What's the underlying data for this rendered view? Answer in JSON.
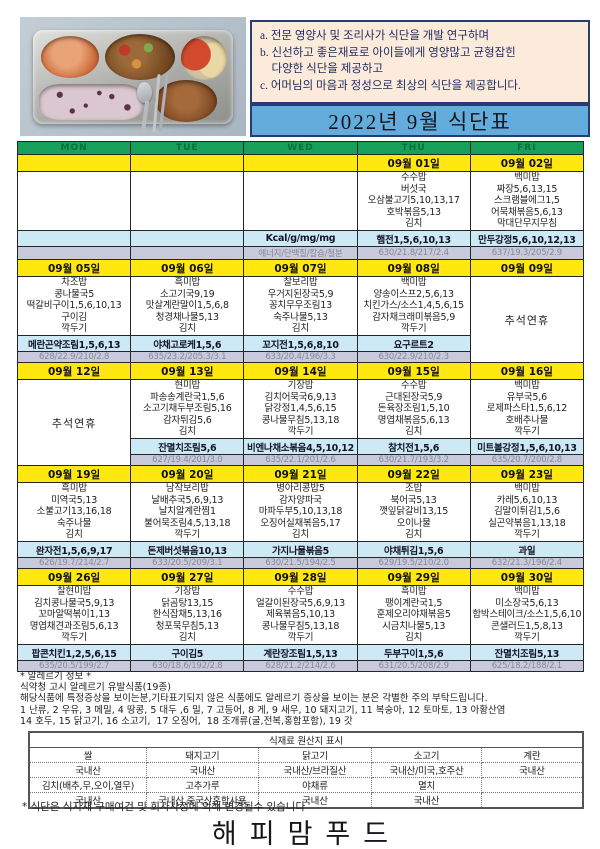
{
  "header": {
    "photo": "lunch-tray-photo",
    "notes": [
      "a. 전문 영양사 및 조리사가 식단을 개발 연구하며",
      "b. 신선하고 좋은재료로 아이들에게 영양많고 균형잡힌",
      "    다양한 식단을 제공하고",
      "c. 어머님의 마음과 정성으로 최상의 식단을 제공합니다."
    ],
    "title": "2022년  9월 식단표"
  },
  "colors": {
    "day_header_bg": "#16a05a",
    "day_header_text": "#0c6f3c",
    "date_bg": "#ffe70f",
    "snack_bg": "#cde9f5",
    "nutrition_bg": "#c9c9dc",
    "title_bg": "#64acdb",
    "note_bg": "#fcebdb",
    "border_navy": "#283c74"
  },
  "calendar": {
    "day_headers": [
      "MON",
      "TUE",
      "WED",
      "THU",
      "FRI"
    ],
    "weeks": [
      {
        "dates": [
          "",
          "",
          "",
          "09월 01일",
          "09월 02일"
        ],
        "days": [
          {
            "menu": [],
            "snack": "",
            "nutrition": ""
          },
          {
            "menu": [],
            "snack": "",
            "nutrition": ""
          },
          {
            "menu": [],
            "snack": "Kcal/g/mg/mg",
            "nutrition": "에너지/단백질/칼슘/철분"
          },
          {
            "menu": [
              "수수밥",
              "버섯국",
              "오삼불고기5,10,13,17",
              "호박볶음5,13",
              "김치"
            ],
            "snack": "햄전1,5,6,10,13",
            "nutrition": "630/21.8/217/2.4"
          },
          {
            "menu": [
              "백미밥",
              "짜장5,6,13,15",
              "스크램블에그1,5",
              "어묵채볶음5,6,13",
              "막대단무지무침"
            ],
            "snack": "만두강정5,6,10,12,13",
            "nutrition": "637/19.3/205/2.9"
          }
        ]
      },
      {
        "dates": [
          "09월 05일",
          "09월 06일",
          "09월 07일",
          "09월 08일",
          "09월 09일"
        ],
        "days": [
          {
            "menu": [
              "차조밥",
              "콩나물국5",
              "떡갈비구이1,5,6,10,13",
              "구이김",
              "깍두기"
            ],
            "snack": "메란곤약조림1,5,6,13",
            "nutrition": "628/22.9/210/2.8"
          },
          {
            "menu": [
              "흑미밥",
              "소고기국9,19",
              "맛살계란말이1,5,6,8",
              "청경채나물5,13",
              "김치"
            ],
            "snack": "야채고로케1,5,6",
            "nutrition": "635/23.2/205.3/3.1"
          },
          {
            "menu": [
              "찰보리밥",
              "우거지된장국5,9",
              "꽁치무우조림13",
              "숙주나물5,13",
              "김치"
            ],
            "snack": "꼬지전1,5,6,8,10",
            "nutrition": "633/20.4/196/3.3"
          },
          {
            "menu": [
              "백미밥",
              "양송이스프2,5,6,13",
              "치킨가스/소스1,4,5,6,15",
              "감자채크래미볶음5,9",
              "깍두기"
            ],
            "snack": "요구르트2",
            "nutrition": "630/22.9/210/2.3"
          },
          {
            "holiday": "추석연휴"
          }
        ]
      },
      {
        "dates": [
          "09월 12일",
          "09월 13일",
          "09월 14일",
          "09월 15일",
          "09월 16일"
        ],
        "days": [
          {
            "holiday": "추석연휴"
          },
          {
            "menu": [
              "현미밥",
              "파송송계란국1,5,6",
              "소고기채두부조림5,16",
              "감자튀김5,6",
              "김치"
            ],
            "snack": "잔멸치조림5,6",
            "nutrition": "627/19.4/201/3.0"
          },
          {
            "menu": [
              "기장밥",
              "김치어묵국6,9,13",
              "닭강정1,4,5,6,15",
              "콩나물무침5,13,18",
              "깍두기"
            ],
            "snack": "비엔나채소볶음4,5,10,12",
            "nutrition": "635/22.1/201/2.6"
          },
          {
            "menu": [
              "수수밥",
              "근대된장국5,9",
              "돈육장조림1,5,10",
              "명엽채볶음5,6,13",
              "김치"
            ],
            "snack": "참치전1,5,6",
            "nutrition": "630/21.7/193/3.2"
          },
          {
            "menu": [
              "백미밥",
              "유부국5,6",
              "로제파스타1,5,6,12",
              "호배추나물",
              "깍두기"
            ],
            "snack": "미트볼강정1,5,6,10,13",
            "nutrition": "635/20.7/200/2.8"
          }
        ]
      },
      {
        "dates": [
          "09월 19일",
          "09월 20일",
          "09월 21일",
          "09월 22일",
          "09월 23일"
        ],
        "days": [
          {
            "menu": [
              "흑미밥",
              "미역국5,13",
              "소불고기13,16,18",
              "숙주나물",
              "김치"
            ],
            "snack": "완자전1,5,6,9,17",
            "nutrition": "626/19.7/214/2.7"
          },
          {
            "menu": [
              "남작보리밥",
              "날배추국5,6,9,13",
              "날치알계란찜1",
              "불어묵조림4,5,13,18",
              "깍두기"
            ],
            "snack": "돈제버섯볶음10,13",
            "nutrition": "633/20.5/209/3.1"
          },
          {
            "menu": [
              "병아리콩밥5",
              "감자양파국",
              "마파두부5,10,13,18",
              "오징어실채볶음5,17",
              "김치"
            ],
            "snack": "가지나물볶음5",
            "nutrition": "630/21.5/194/2.5"
          },
          {
            "menu": [
              "조밥",
              "북어국5,13",
              "깻잎닭갈비13,15",
              "오이나물",
              "김치"
            ],
            "snack": "야채튀김1,5,6",
            "nutrition": "629/19.5/210/2.0"
          },
          {
            "menu": [
              "백미밥",
              "카레5,6,10,13",
              "김말이튀김1,5,6",
              "실곤약볶음1,13,18",
              "깍두기"
            ],
            "snack": "과일",
            "nutrition": "632/21.3/196/2.4"
          }
        ]
      },
      {
        "dates": [
          "09월 26일",
          "09월 27일",
          "09월 28일",
          "09월 29일",
          "09월 30일"
        ],
        "days": [
          {
            "menu": [
              "찰현미밥",
              "김치콩나물국5,9,13",
              "꼬마알떡볶이1,13",
              "명엽채견과조림5,6,13",
              "깍두기"
            ],
            "snack": "팝콘치킨1,2,5,6,15",
            "nutrition": "635/20.5/199/2.7"
          },
          {
            "menu": [
              "기장밥",
              "닭곰탕13,15",
              "한식잡채5,13,16",
              "청포묵무침5,13",
              "김치"
            ],
            "snack": "구이김5",
            "nutrition": "630/18.6/192/2.8"
          },
          {
            "menu": [
              "수수밥",
              "얼갈이된장국5,6,9,13",
              "제육볶음5,10,13",
              "콩나물무침5,13,18",
              "깍두기"
            ],
            "snack": "계란장조림1,5,13",
            "nutrition": "628/21.2/214/2.6"
          },
          {
            "menu": [
              "흑미밥",
              "팽이계란국1,5",
              "훈제오리야채볶음5",
              "시금치나물5,13",
              "김치"
            ],
            "snack": "두부구이1,5,6",
            "nutrition": "631/20.5/208/2.9"
          },
          {
            "menu": [
              "백미밥",
              "미소장국5,6,13",
              "함박스테이크/소스1,5,6,10",
              "콘샐러드1,5,8,13",
              "깍두기"
            ],
            "snack": "잔멸치조림5,13",
            "nutrition": "625/18.2/188/2.1"
          }
        ]
      }
    ]
  },
  "allergy": {
    "lines": [
      "* 알레르기 정보 *",
      "식약청 고시 알레르기 유발식품(19종)",
      "해당식품에 특정증상을 보이는분,기타표기되지 않은 식품에도 알레르기 증상을 보이는 분은 각별한 주의 부탁드립니다.",
      "1 난류, 2 우유, 3 메밀, 4 땅콩, 5 대두 ,6 밀, 7 고등어, 8 게, 9 새우, 10 돼지고기, 11 복숭아, 12 토마토, 13 아황산염",
      "14 호두, 15 닭고기, 16 소고기,  17 오징어,  18 조개류(굴,전복,홍합포함), 19 갓"
    ]
  },
  "origin_table": {
    "title": "식재료 원산지 표시",
    "rows": [
      [
        "쌀",
        "돼지고기",
        "닭고기",
        "소고기",
        "계란"
      ],
      [
        "국내산",
        "국내산",
        "국내산/브라질산",
        "국내산/미국,호주산",
        "국내산"
      ],
      [
        "김치(배추,무,오이,열무)",
        "고추가루",
        "야채류",
        "멸치",
        ""
      ],
      [
        "국내산",
        "국내산,중국산혼합사용",
        "국내산",
        "국내산",
        ""
      ]
    ]
  },
  "footer": {
    "note": "* 식단은 식자재 구매여건 및 회사사정에 의해 변경될수 있습니다",
    "brand": "해피맘푸드"
  }
}
